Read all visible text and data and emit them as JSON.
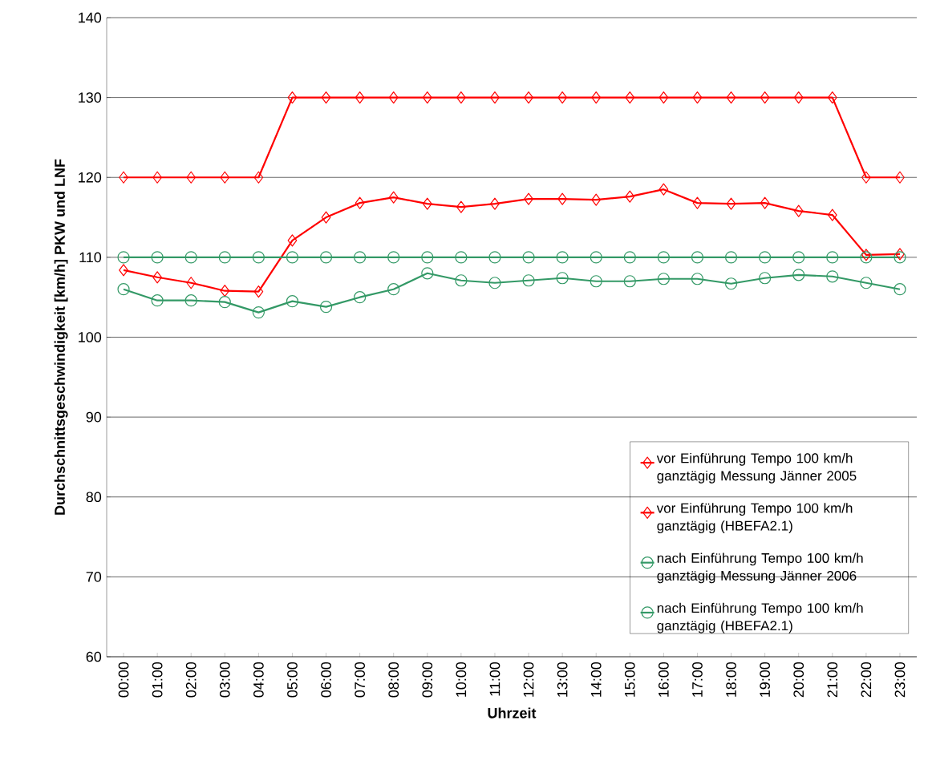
{
  "chart_data": {
    "type": "line",
    "xlabel": "Uhrzeit",
    "ylabel": "Durchschnittsgeschwindigkeit [km/h] PKW und LNF",
    "categories": [
      "00:00",
      "01:00",
      "02:00",
      "03:00",
      "04:00",
      "05:00",
      "06:00",
      "07:00",
      "08:00",
      "09:00",
      "10:00",
      "11:00",
      "12:00",
      "13:00",
      "14:00",
      "15:00",
      "16:00",
      "17:00",
      "18:00",
      "19:00",
      "20:00",
      "21:00",
      "22:00",
      "23:00"
    ],
    "series": [
      {
        "name": "vor Einführung Tempo 100 km/h ganztägig Messung Jänner 2005",
        "color": "#ff0000",
        "marker": "diamond",
        "values": [
          108.4,
          107.5,
          106.8,
          105.8,
          105.7,
          112.1,
          115.0,
          116.8,
          117.5,
          116.7,
          116.3,
          116.7,
          117.3,
          117.3,
          117.2,
          117.6,
          118.5,
          116.8,
          116.7,
          116.8,
          115.8,
          115.3,
          110.3,
          110.4
        ]
      },
      {
        "name": "vor Einführung Tempo 100 km/h ganztägig (HBEFA2.1)",
        "color": "#ff0000",
        "marker": "diamond",
        "values": [
          120,
          120,
          120,
          120,
          120,
          130,
          130,
          130,
          130,
          130,
          130,
          130,
          130,
          130,
          130,
          130,
          130,
          130,
          130,
          130,
          130,
          130,
          120,
          120
        ]
      },
      {
        "name": "nach Einführung Tempo 100 km/h ganztägig Messung Jänner 2006",
        "color": "#339966",
        "marker": "circle",
        "values": [
          106.0,
          104.6,
          104.6,
          104.4,
          103.1,
          104.5,
          103.8,
          105.0,
          106.0,
          108.0,
          107.1,
          106.8,
          107.1,
          107.4,
          107.0,
          107.0,
          107.3,
          107.3,
          106.7,
          107.4,
          107.8,
          107.6,
          106.8,
          106.0
        ]
      },
      {
        "name": "nach Einführung Tempo 100 km/h ganztägig (HBEFA2.1)",
        "color": "#339966",
        "marker": "circle",
        "values": [
          110,
          110,
          110,
          110,
          110,
          110,
          110,
          110,
          110,
          110,
          110,
          110,
          110,
          110,
          110,
          110,
          110,
          110,
          110,
          110,
          110,
          110,
          110,
          110
        ]
      }
    ],
    "ylim": [
      60,
      140
    ],
    "yticks": [
      60,
      70,
      80,
      90,
      100,
      110,
      120,
      130,
      140
    ],
    "grid": "y",
    "legend": "bottom right"
  }
}
